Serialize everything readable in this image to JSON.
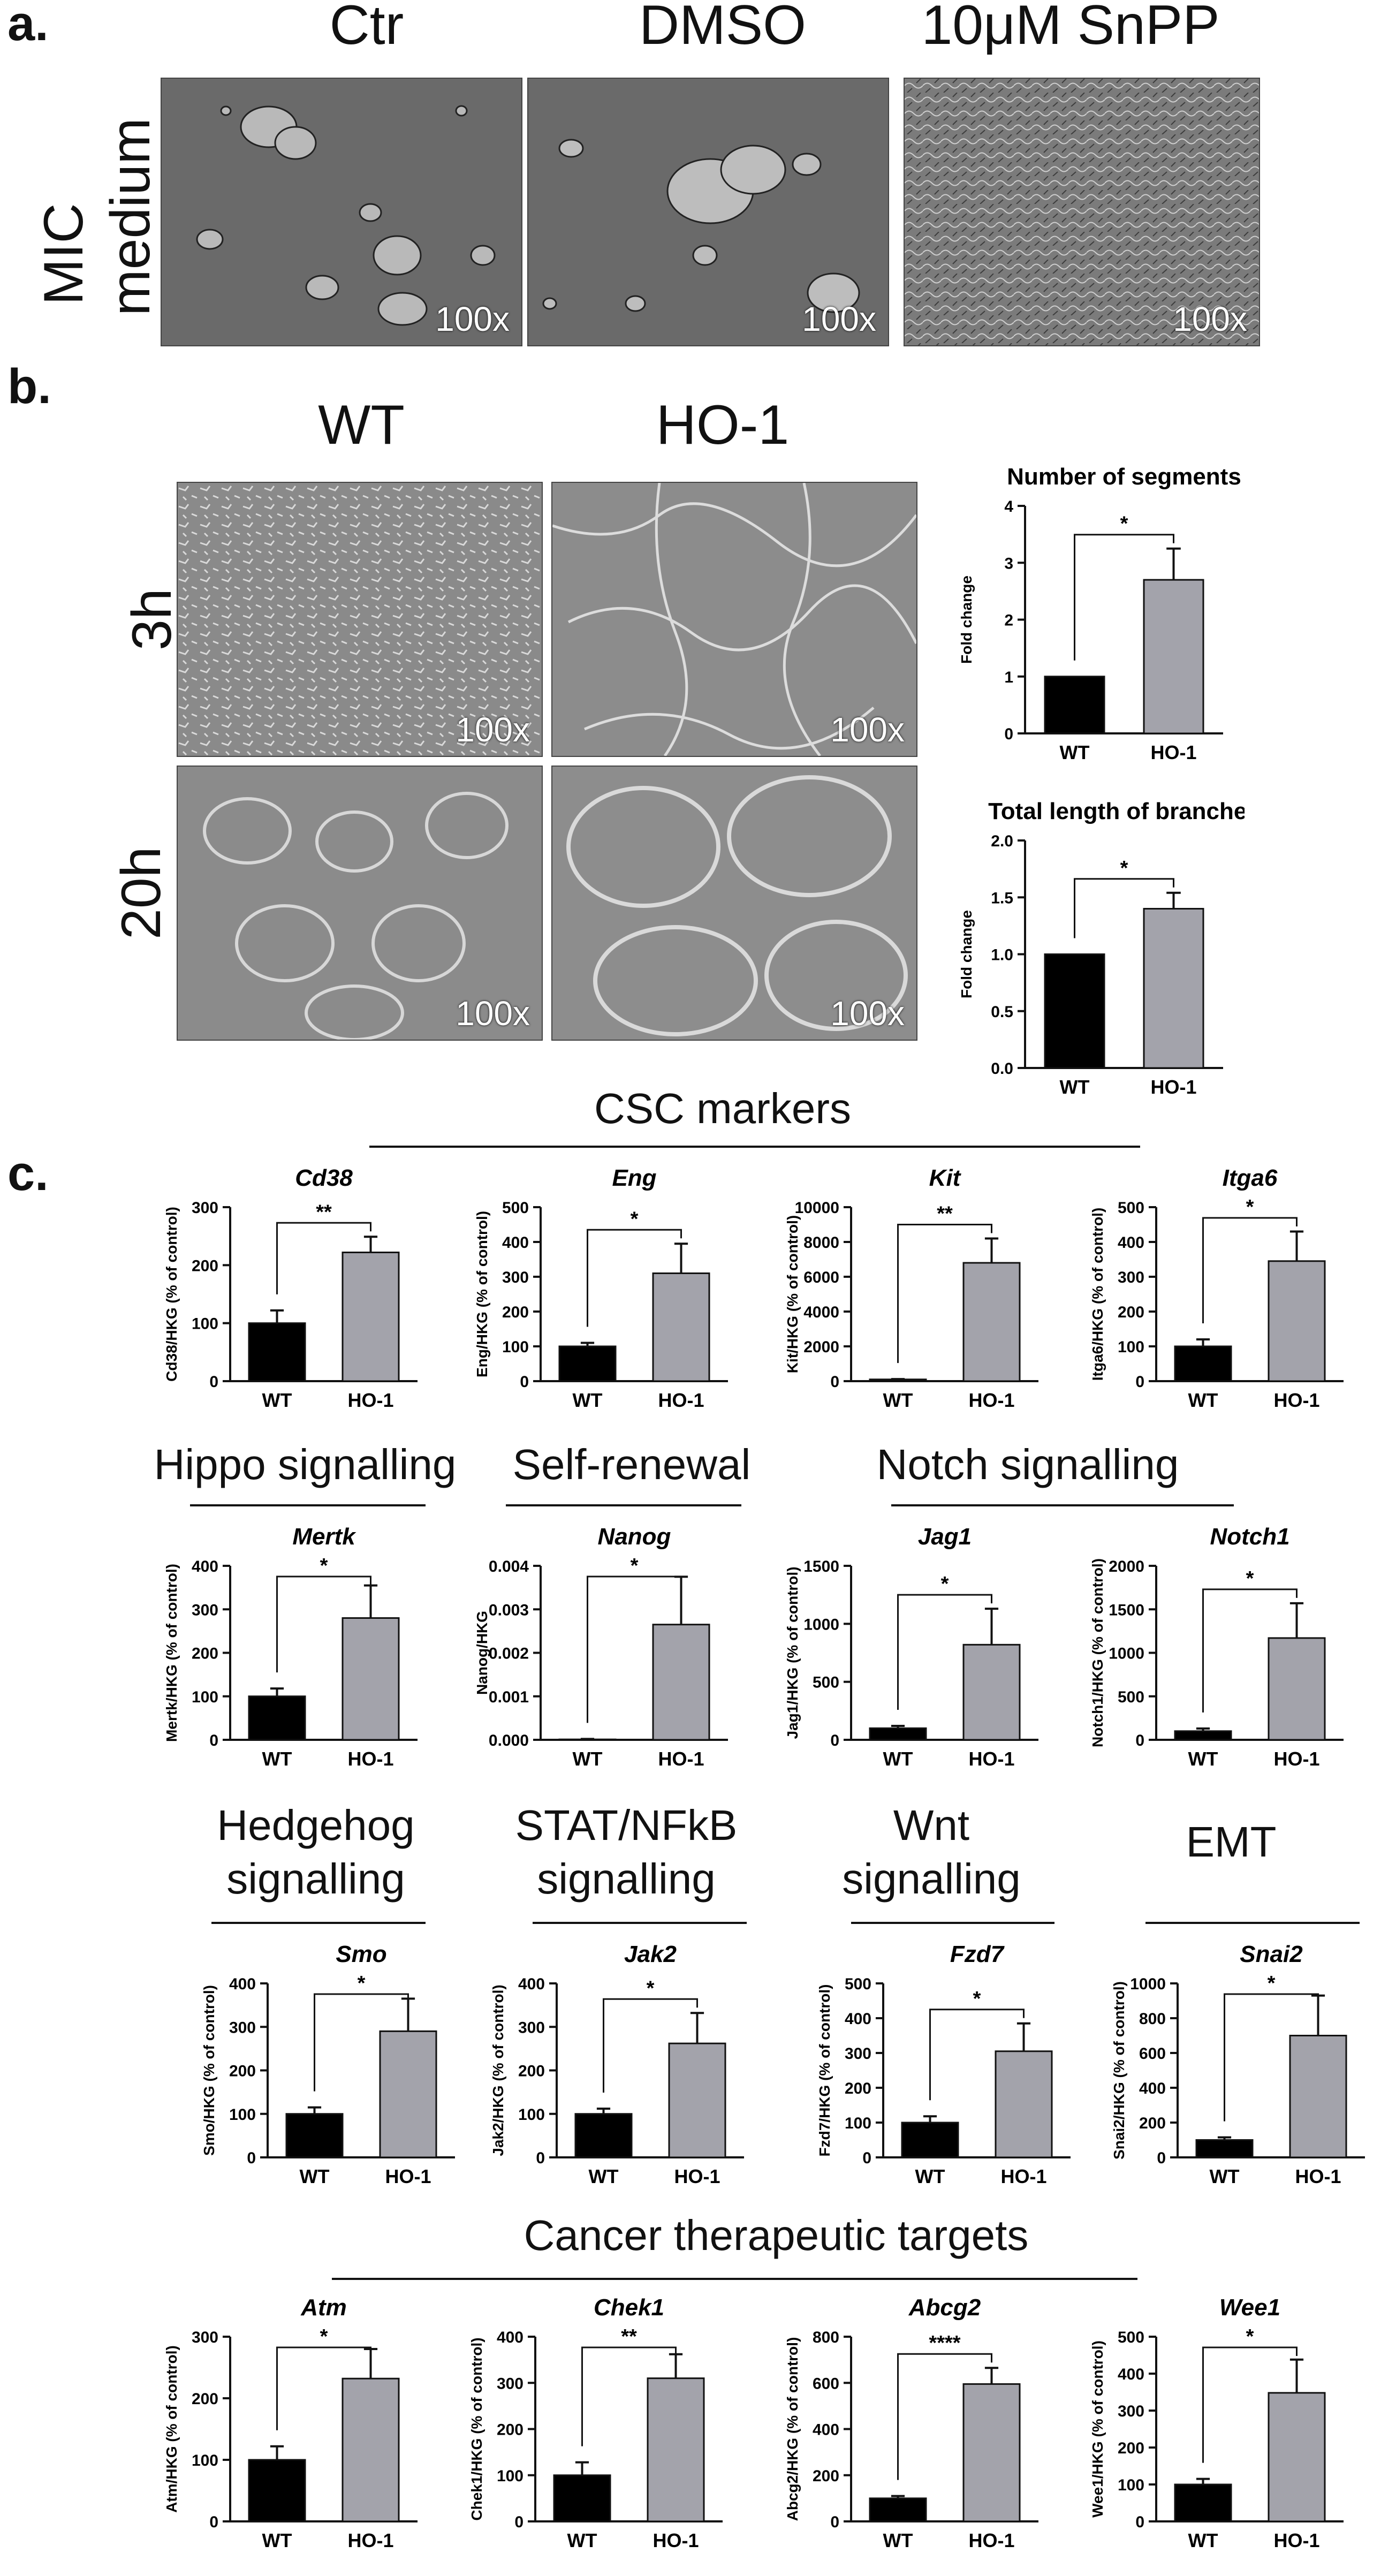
{
  "panel_a": {
    "letter": "a.",
    "row_label_line1": "MIC",
    "row_label_line2": "medium",
    "columns": [
      "Ctr",
      "DMSO",
      "10μM SnPP"
    ],
    "magnifications": [
      "100x",
      "100x",
      "100x"
    ]
  },
  "panel_b": {
    "letter": "b.",
    "columns": [
      "WT",
      "HO-1"
    ],
    "rows": [
      "3h",
      "20h"
    ],
    "magnifications": [
      "100x",
      "100x",
      "100x",
      "100x"
    ]
  },
  "panel_c": {
    "letter": "c."
  },
  "groups": [
    {
      "id": "csc",
      "title": "CSC markers"
    },
    {
      "id": "hippo",
      "title": "Hippo signalling"
    },
    {
      "id": "selfrenewal",
      "title": "Self-renewal"
    },
    {
      "id": "notch",
      "title": "Notch signalling"
    },
    {
      "id": "hedgehog",
      "title": "Hedgehog\nsignalling"
    },
    {
      "id": "stat",
      "title": "STAT/NFkB\nsignalling"
    },
    {
      "id": "wnt",
      "title": "Wnt\nsignalling"
    },
    {
      "id": "emt",
      "title": "EMT"
    },
    {
      "id": "cancer",
      "title": "Cancer therapeutic targets"
    }
  ],
  "chart_data": [
    {
      "id": "segments",
      "type": "bar",
      "title": "Number of segments",
      "title_italic": false,
      "categories": [
        "WT",
        "HO-1"
      ],
      "values": [
        1.0,
        2.7
      ],
      "errors": [
        0,
        0.55
      ],
      "ylabel": "Fold change",
      "ylim": [
        0,
        4
      ],
      "yticks": [
        "0",
        "1",
        "2",
        "3",
        "4"
      ],
      "significance": "*",
      "colors": [
        "#000000",
        "#a3a3ab"
      ]
    },
    {
      "id": "branches",
      "type": "bar",
      "title": "Total length of branches",
      "title_italic": false,
      "categories": [
        "WT",
        "HO-1"
      ],
      "values": [
        1.0,
        1.4
      ],
      "errors": [
        0,
        0.14
      ],
      "ylabel": "Fold change",
      "ylim": [
        0,
        2.0
      ],
      "yticks": [
        "0.0",
        "0.5",
        "1.0",
        "1.5",
        "2.0"
      ],
      "significance": "*",
      "colors": [
        "#000000",
        "#a3a3ab"
      ]
    },
    {
      "id": "cd38",
      "type": "bar",
      "title": "Cd38",
      "title_italic": true,
      "categories": [
        "WT",
        "HO-1"
      ],
      "values": [
        100,
        222
      ],
      "errors": [
        22,
        27
      ],
      "ylabel": "Cd38/HKG (% of control)",
      "ylim": [
        0,
        300
      ],
      "yticks": [
        "0",
        "100",
        "200",
        "300"
      ],
      "significance": "**",
      "colors": [
        "#000000",
        "#a3a3ab"
      ]
    },
    {
      "id": "eng",
      "type": "bar",
      "title": "Eng",
      "title_italic": true,
      "categories": [
        "WT",
        "HO-1"
      ],
      "values": [
        100,
        310
      ],
      "errors": [
        10,
        85
      ],
      "ylabel": "Eng/HKG (% of control)",
      "ylim": [
        0,
        500
      ],
      "yticks": [
        "0",
        "100",
        "200",
        "300",
        "400",
        "500"
      ],
      "significance": "*",
      "colors": [
        "#000000",
        "#a3a3ab"
      ]
    },
    {
      "id": "kit",
      "type": "bar",
      "title": "Kit",
      "title_italic": true,
      "categories": [
        "WT",
        "HO-1"
      ],
      "values": [
        100,
        6800
      ],
      "errors": [
        20,
        1400
      ],
      "ylabel": "Kit/HKG (% of control)",
      "ylim": [
        0,
        10000
      ],
      "yticks": [
        "0",
        "2000",
        "4000",
        "6000",
        "8000",
        "10000"
      ],
      "significance": "**",
      "colors": [
        "#000000",
        "#a3a3ab"
      ]
    },
    {
      "id": "itga6",
      "type": "bar",
      "title": "Itga6",
      "title_italic": true,
      "categories": [
        "WT",
        "HO-1"
      ],
      "values": [
        100,
        345
      ],
      "errors": [
        20,
        85
      ],
      "ylabel": "Itga6/HKG (% of control)",
      "ylim": [
        0,
        500
      ],
      "yticks": [
        "0",
        "100",
        "200",
        "300",
        "400",
        "500"
      ],
      "significance": "*",
      "colors": [
        "#000000",
        "#a3a3ab"
      ]
    },
    {
      "id": "mertk",
      "type": "bar",
      "title": "Mertk",
      "title_italic": true,
      "categories": [
        "WT",
        "HO-1"
      ],
      "values": [
        100,
        280
      ],
      "errors": [
        18,
        75
      ],
      "ylabel": "Mertk/HKG (% of control)",
      "ylim": [
        0,
        400
      ],
      "yticks": [
        "0",
        "100",
        "200",
        "300",
        "400"
      ],
      "significance": "*",
      "colors": [
        "#000000",
        "#a3a3ab"
      ]
    },
    {
      "id": "nanog",
      "type": "bar",
      "title": "Nanog",
      "title_italic": true,
      "categories": [
        "WT",
        "HO-1"
      ],
      "values": [
        1e-05,
        0.00265
      ],
      "errors": [
        1e-05,
        0.0011
      ],
      "ylabel": "Nanog/HKG",
      "ylim": [
        0,
        0.004
      ],
      "yticks": [
        "0.000",
        "0.001",
        "0.002",
        "0.003",
        "0.004"
      ],
      "significance": "*",
      "colors": [
        "#000000",
        "#a3a3ab"
      ]
    },
    {
      "id": "jag1",
      "type": "bar",
      "title": "Jag1",
      "title_italic": true,
      "categories": [
        "WT",
        "HO-1"
      ],
      "values": [
        100,
        820
      ],
      "errors": [
        20,
        310
      ],
      "ylabel": "Jag1/HKG (% of control)",
      "ylim": [
        0,
        1500
      ],
      "yticks": [
        "0",
        "500",
        "1000",
        "1500"
      ],
      "significance": "*",
      "colors": [
        "#000000",
        "#a3a3ab"
      ]
    },
    {
      "id": "notch1",
      "type": "bar",
      "title": "Notch1",
      "title_italic": true,
      "categories": [
        "WT",
        "HO-1"
      ],
      "values": [
        100,
        1170
      ],
      "errors": [
        30,
        400
      ],
      "ylabel": "Notch1/HKG (% of control)",
      "ylim": [
        0,
        2000
      ],
      "yticks": [
        "0",
        "500",
        "1000",
        "1500",
        "2000"
      ],
      "significance": "*",
      "colors": [
        "#000000",
        "#a3a3ab"
      ]
    },
    {
      "id": "smo",
      "type": "bar",
      "title": "Smo",
      "title_italic": true,
      "categories": [
        "WT",
        "HO-1"
      ],
      "values": [
        100,
        290
      ],
      "errors": [
        15,
        75
      ],
      "ylabel": "Smo/HKG (% of control)",
      "ylim": [
        0,
        400
      ],
      "yticks": [
        "0",
        "100",
        "200",
        "300",
        "400"
      ],
      "significance": "*",
      "colors": [
        "#000000",
        "#a3a3ab"
      ]
    },
    {
      "id": "jak2",
      "type": "bar",
      "title": "Jak2",
      "title_italic": true,
      "categories": [
        "WT",
        "HO-1"
      ],
      "values": [
        100,
        262
      ],
      "errors": [
        12,
        70
      ],
      "ylabel": "Jak2/HKG (% of control)",
      "ylim": [
        0,
        400
      ],
      "yticks": [
        "0",
        "100",
        "200",
        "300",
        "400"
      ],
      "significance": "*",
      "colors": [
        "#000000",
        "#a3a3ab"
      ]
    },
    {
      "id": "fzd7",
      "type": "bar",
      "title": "Fzd7",
      "title_italic": true,
      "categories": [
        "WT",
        "HO-1"
      ],
      "values": [
        100,
        305
      ],
      "errors": [
        18,
        80
      ],
      "ylabel": "Fzd7/HKG (% of control)",
      "ylim": [
        0,
        500
      ],
      "yticks": [
        "0",
        "100",
        "200",
        "300",
        "400",
        "500"
      ],
      "significance": "*",
      "colors": [
        "#000000",
        "#a3a3ab"
      ]
    },
    {
      "id": "snai2",
      "type": "bar",
      "title": "Snai2",
      "title_italic": true,
      "categories": [
        "WT",
        "HO-1"
      ],
      "values": [
        100,
        700
      ],
      "errors": [
        15,
        230
      ],
      "ylabel": "Snai2/HKG (% of control)",
      "ylim": [
        0,
        1000
      ],
      "yticks": [
        "0",
        "200",
        "400",
        "600",
        "800",
        "1000"
      ],
      "significance": "*",
      "colors": [
        "#000000",
        "#a3a3ab"
      ]
    },
    {
      "id": "atm",
      "type": "bar",
      "title": "Atm",
      "title_italic": true,
      "categories": [
        "WT",
        "HO-1"
      ],
      "values": [
        100,
        232
      ],
      "errors": [
        22,
        48
      ],
      "ylabel": "Atm/HKG (% of control)",
      "ylim": [
        0,
        300
      ],
      "yticks": [
        "0",
        "100",
        "200",
        "300"
      ],
      "significance": "*",
      "colors": [
        "#000000",
        "#a3a3ab"
      ]
    },
    {
      "id": "chek1",
      "type": "bar",
      "title": "Chek1",
      "title_italic": true,
      "categories": [
        "WT",
        "HO-1"
      ],
      "values": [
        100,
        310
      ],
      "errors": [
        28,
        52
      ],
      "ylabel": "Chek1/HKG (% of control)",
      "ylim": [
        0,
        400
      ],
      "yticks": [
        "0",
        "100",
        "200",
        "300",
        "400"
      ],
      "significance": "**",
      "colors": [
        "#000000",
        "#a3a3ab"
      ]
    },
    {
      "id": "abcg2",
      "type": "bar",
      "title": "Abcg2",
      "title_italic": true,
      "categories": [
        "WT",
        "HO-1"
      ],
      "values": [
        100,
        595
      ],
      "errors": [
        10,
        70
      ],
      "ylabel": "Abcg2/HKG (% of control)",
      "ylim": [
        0,
        800
      ],
      "yticks": [
        "0",
        "200",
        "400",
        "600",
        "800"
      ],
      "significance": "****",
      "colors": [
        "#000000",
        "#a3a3ab"
      ]
    },
    {
      "id": "wee1",
      "type": "bar",
      "title": "Wee1",
      "title_italic": true,
      "categories": [
        "WT",
        "HO-1"
      ],
      "values": [
        100,
        348
      ],
      "errors": [
        15,
        90
      ],
      "ylabel": "Wee1/HKG (% of control)",
      "ylim": [
        0,
        500
      ],
      "yticks": [
        "0",
        "100",
        "200",
        "300",
        "400",
        "500"
      ],
      "significance": "*",
      "colors": [
        "#000000",
        "#a3a3ab"
      ]
    }
  ]
}
